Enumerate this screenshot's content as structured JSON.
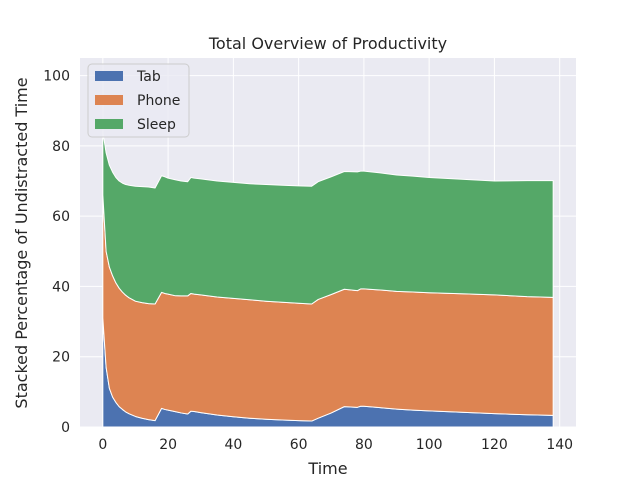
{
  "chart_data": {
    "type": "area",
    "stacked": true,
    "title": "Total Overview of Productivity",
    "xlabel": "Time",
    "ylabel": "Stacked Percentage of Undistracted Time",
    "xlim": [
      -7,
      145
    ],
    "ylim": [
      0,
      105
    ],
    "xticks": [
      0,
      20,
      40,
      60,
      80,
      100,
      120,
      140
    ],
    "yticks": [
      0,
      20,
      40,
      60,
      80,
      100
    ],
    "grid": true,
    "legend_position": "top-left",
    "x": [
      0,
      1,
      2,
      3,
      4,
      5,
      6,
      7,
      8,
      10,
      12,
      14,
      16,
      18,
      19,
      20,
      22,
      24,
      26,
      27,
      28,
      30,
      35,
      40,
      45,
      50,
      55,
      60,
      64,
      66,
      70,
      74,
      78,
      79,
      80,
      85,
      90,
      95,
      100,
      110,
      120,
      130,
      138
    ],
    "series": [
      {
        "name": "Tab",
        "color": "#4c72b0",
        "values": [
          31,
          17,
          11,
          8.5,
          7,
          5.8,
          5,
          4.3,
          3.8,
          3.0,
          2.5,
          2.1,
          1.8,
          5.3,
          5.0,
          4.8,
          4.4,
          4.0,
          3.7,
          4.5,
          4.4,
          4.1,
          3.4,
          2.9,
          2.5,
          2.2,
          2.0,
          1.8,
          1.7,
          2.5,
          4.0,
          5.8,
          5.6,
          5.9,
          5.9,
          5.5,
          5.1,
          4.8,
          4.6,
          4.2,
          3.8,
          3.5,
          3.3
        ]
      },
      {
        "name": "Phone",
        "color": "#dd8452",
        "values": [
          35,
          33,
          34.5,
          34.5,
          34,
          33.7,
          33.4,
          33.2,
          33.0,
          32.8,
          32.9,
          33.0,
          33.2,
          33.0,
          33.0,
          33.0,
          33.0,
          33.3,
          33.6,
          33.5,
          33.4,
          33.5,
          33.6,
          33.7,
          33.7,
          33.6,
          33.5,
          33.4,
          33.3,
          33.8,
          33.7,
          33.4,
          33.2,
          33.4,
          33.4,
          33.5,
          33.5,
          33.6,
          33.6,
          33.7,
          33.8,
          33.6,
          33.6
        ]
      },
      {
        "name": "Sleep",
        "color": "#55a868",
        "values": [
          18,
          28,
          29,
          29.5,
          30,
          30.5,
          31,
          31.5,
          32,
          32.7,
          33.0,
          33.2,
          33.0,
          33.2,
          33.2,
          33.0,
          33.0,
          32.7,
          32.5,
          33.0,
          33.0,
          33.0,
          33.0,
          33.0,
          33.0,
          33.2,
          33.3,
          33.4,
          33.5,
          33.5,
          33.5,
          33.5,
          33.8,
          33.5,
          33.5,
          33.3,
          33.1,
          33.0,
          32.8,
          32.6,
          32.4,
          33.0,
          33.2
        ]
      }
    ]
  }
}
